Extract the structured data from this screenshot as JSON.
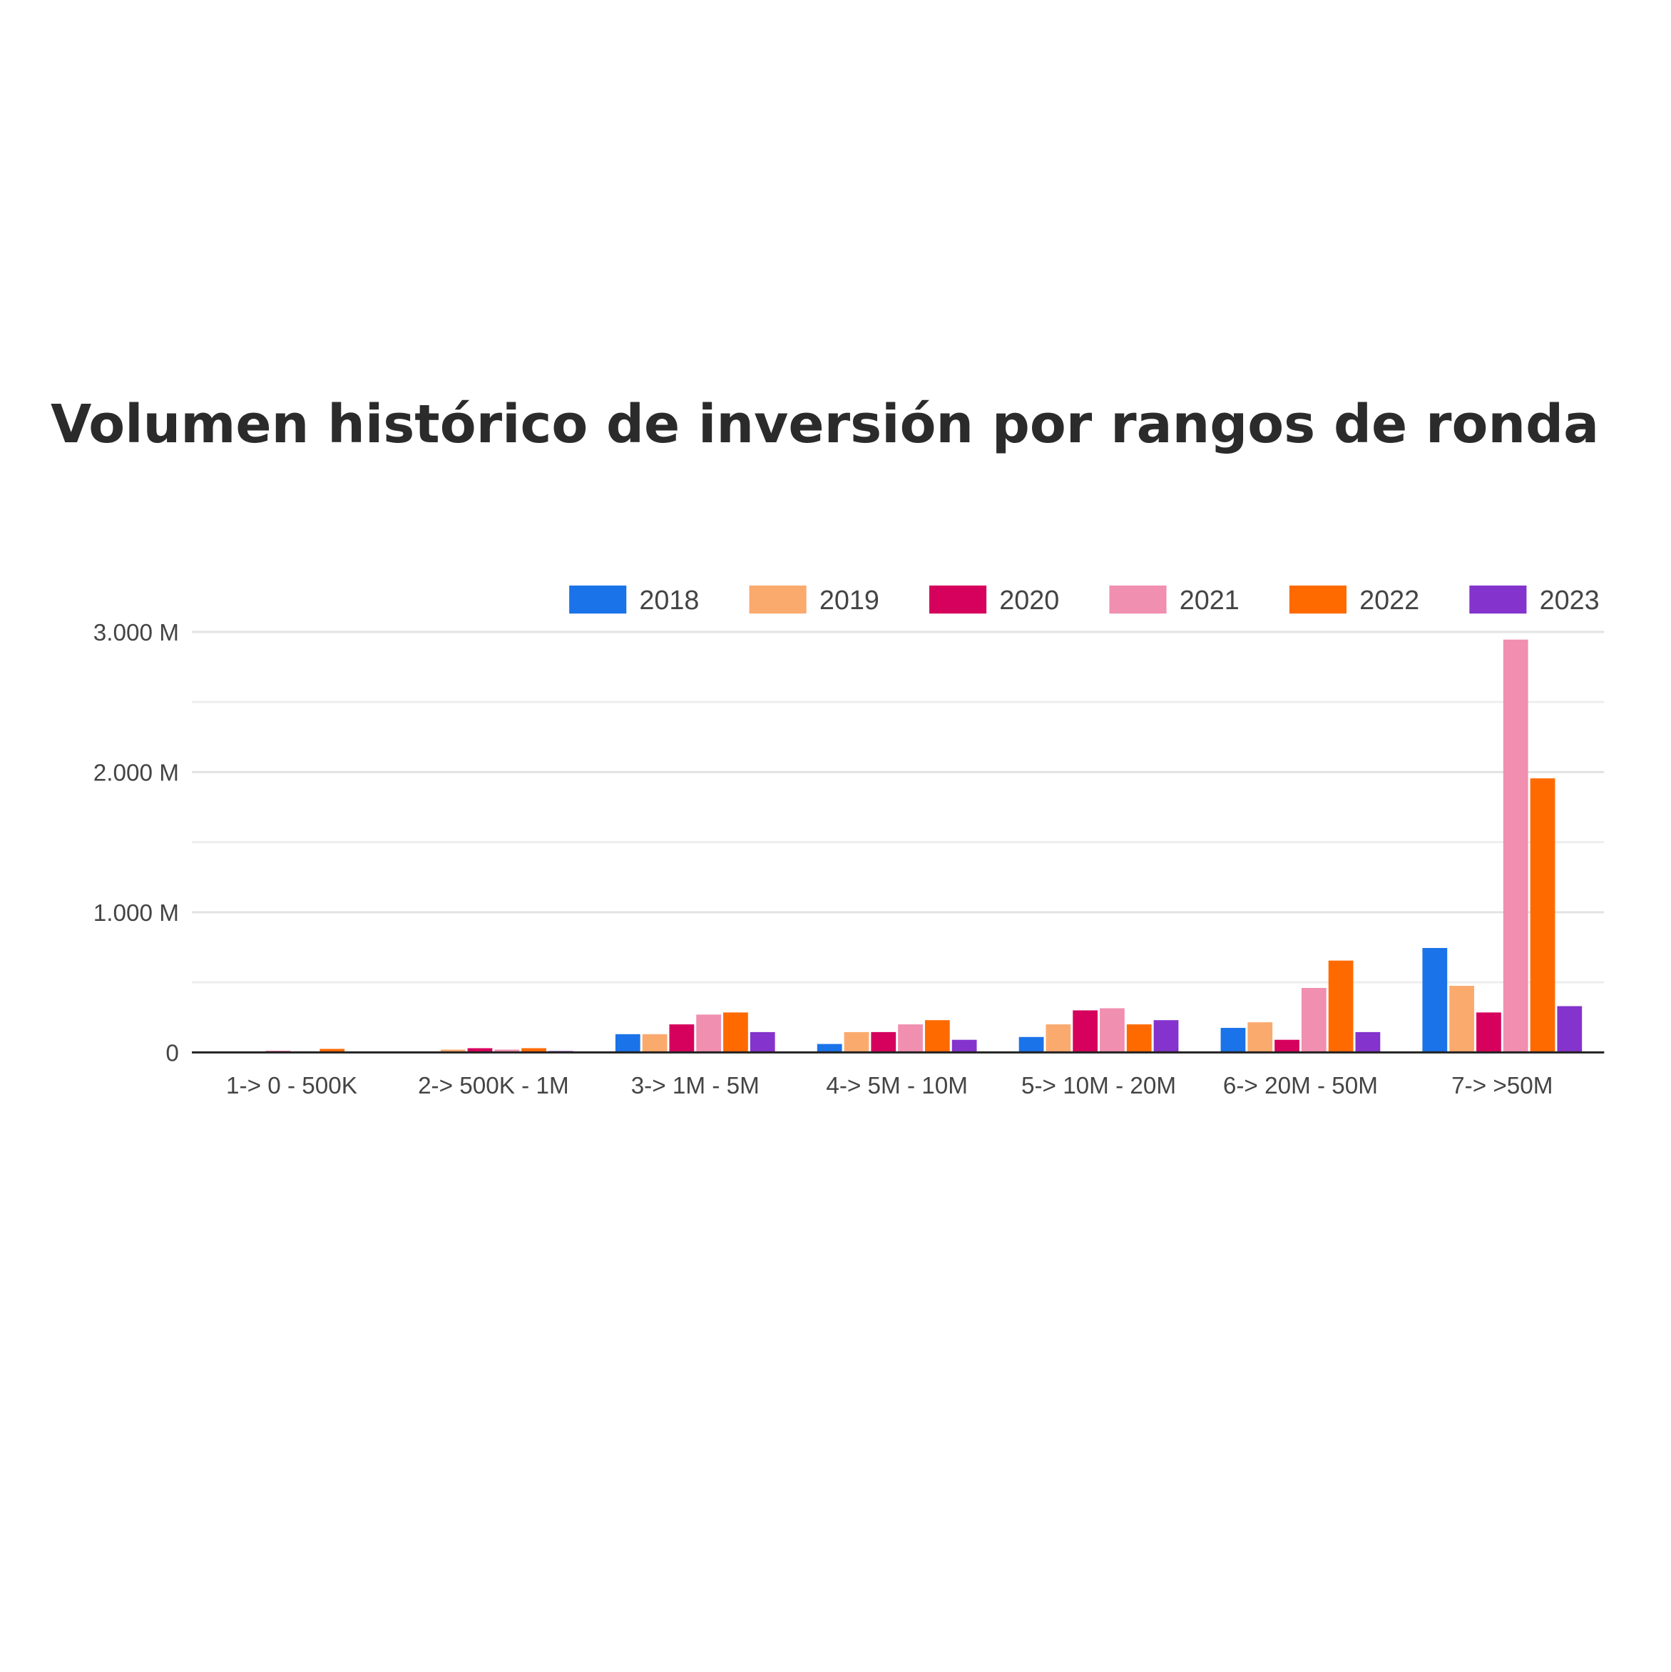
{
  "chart_data": {
    "type": "bar",
    "title": "Volumen histórico de inversión por rangos de ronda",
    "xlabel": "",
    "ylabel": "",
    "ylim": [
      0,
      3000
    ],
    "yticks": [
      0,
      1000,
      2000,
      3000
    ],
    "ytick_labels": [
      "0",
      "1.000 M",
      "2.000 M",
      "3.000 M"
    ],
    "grid": true,
    "legend_position": "top-right",
    "categories": [
      "1-> 0 - 500K",
      "2-> 500K - 1M",
      "3-> 1M - 5M",
      "4-> 5M - 10M",
      "5-> 10M - 20M",
      "6-> 20M - 50M",
      "7-> >50M"
    ],
    "series": [
      {
        "name": "2018",
        "color": "#1a73e8",
        "values": [
          0,
          5,
          130,
          60,
          110,
          175,
          745
        ]
      },
      {
        "name": "2019",
        "color": "#fbaa6e",
        "values": [
          3,
          20,
          130,
          145,
          200,
          215,
          475
        ]
      },
      {
        "name": "2020",
        "color": "#d6005d",
        "values": [
          10,
          30,
          200,
          145,
          300,
          90,
          285
        ]
      },
      {
        "name": "2021",
        "color": "#f08fb0",
        "values": [
          8,
          20,
          270,
          200,
          315,
          460,
          2945
        ]
      },
      {
        "name": "2022",
        "color": "#ff6a00",
        "values": [
          25,
          30,
          285,
          230,
          200,
          655,
          1955
        ]
      },
      {
        "name": "2023",
        "color": "#8433cc",
        "values": [
          2,
          10,
          145,
          90,
          230,
          145,
          330
        ]
      }
    ]
  }
}
